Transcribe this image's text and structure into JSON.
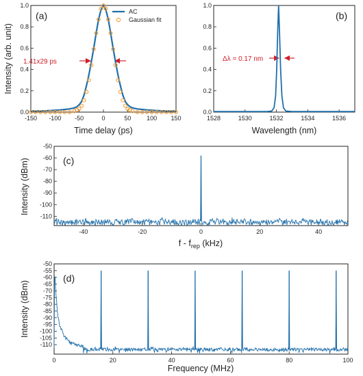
{
  "colors": {
    "trace": "#1f6faa",
    "fit": "#f39c33",
    "annotation": "#d0202a",
    "axis": "#222222"
  },
  "chart_data": [
    {
      "id": "a",
      "type": "line",
      "panel_label": "(a)",
      "xlabel": "Time delay (ps)",
      "ylabel": "Intensity (arb. unit)",
      "xlim": [
        -150,
        150
      ],
      "ylim": [
        0,
        1.0
      ],
      "xticks": [
        "-150",
        "-100",
        "-50",
        "0",
        "50",
        "100",
        "150"
      ],
      "yticks": [
        "0.0",
        "0.2",
        "0.4",
        "0.6",
        "0.8",
        "1.0"
      ],
      "legend": {
        "position": "top-right",
        "entries": [
          "AC",
          "Gaussian fit"
        ]
      },
      "annotation": "1.41x29 ps",
      "series": [
        {
          "name": "AC",
          "style": "line",
          "x": [
            -150,
            -130,
            -110,
            -90,
            -80,
            -70,
            -60,
            -55,
            -50,
            -45,
            -40,
            -35,
            -30,
            -25,
            -20,
            -15,
            -10,
            -5,
            0,
            5,
            10,
            15,
            20,
            25,
            30,
            35,
            40,
            45,
            50,
            55,
            60,
            70,
            80,
            90,
            110,
            130,
            150
          ],
          "y": [
            0.01,
            0.01,
            0.015,
            0.02,
            0.025,
            0.03,
            0.04,
            0.05,
            0.07,
            0.1,
            0.16,
            0.25,
            0.35,
            0.47,
            0.6,
            0.74,
            0.87,
            0.96,
            1.0,
            0.96,
            0.87,
            0.74,
            0.6,
            0.47,
            0.35,
            0.25,
            0.16,
            0.1,
            0.07,
            0.05,
            0.04,
            0.03,
            0.025,
            0.02,
            0.015,
            0.01,
            0.01
          ]
        },
        {
          "name": "Gaussian fit",
          "style": "markers",
          "x": [
            -150,
            -140,
            -130,
            -120,
            -110,
            -100,
            -90,
            -80,
            -70,
            -60,
            -55,
            -50,
            -45,
            -40,
            -35,
            -30,
            -25,
            -20,
            -15,
            -10,
            -5,
            0,
            5,
            10,
            15,
            20,
            25,
            30,
            35,
            40,
            45,
            50,
            55,
            60,
            70,
            80,
            90,
            100,
            110,
            120,
            130,
            140,
            150
          ],
          "y": [
            0,
            0,
            0,
            0,
            0,
            0,
            0,
            0,
            0,
            0.01,
            0.02,
            0.03,
            0.06,
            0.11,
            0.19,
            0.3,
            0.44,
            0.59,
            0.74,
            0.87,
            0.97,
            1.0,
            0.97,
            0.87,
            0.74,
            0.59,
            0.44,
            0.3,
            0.19,
            0.11,
            0.06,
            0.03,
            0.02,
            0.01,
            0,
            0,
            0,
            0,
            0,
            0,
            0,
            0,
            0
          ]
        }
      ]
    },
    {
      "id": "b",
      "type": "line",
      "panel_label": "(b)",
      "xlabel": "Wavelength (nm)",
      "ylabel": "",
      "xlim": [
        1528,
        1537
      ],
      "ylim": [
        0,
        1.0
      ],
      "xticks": [
        "1528",
        "1530",
        "1532",
        "1534",
        "1536"
      ],
      "yticks": [
        "0.0",
        "0.2",
        "0.4",
        "0.6",
        "0.8",
        "1.0"
      ],
      "annotation": "Δλ = 0.17 nm",
      "series": [
        {
          "name": "",
          "style": "line",
          "x": [
            1528,
            1531.4,
            1531.7,
            1531.85,
            1531.95,
            1532.02,
            1532.08,
            1532.14,
            1532.2,
            1532.27,
            1532.35,
            1532.45,
            1532.6,
            1533,
            1537
          ],
          "y": [
            0.005,
            0.005,
            0.01,
            0.04,
            0.15,
            0.4,
            0.75,
            1.0,
            0.75,
            0.4,
            0.15,
            0.04,
            0.01,
            0.005,
            0.005
          ]
        }
      ]
    },
    {
      "id": "c",
      "type": "line",
      "panel_label": "(c)",
      "xlabel": "f - f_rep (kHz)",
      "xlabel_main": "f - f",
      "xlabel_sub": "rep",
      "xlabel_tail": " (kHz)",
      "ylabel": "Intensity (dBm)",
      "xlim": [
        -50,
        50
      ],
      "ylim": [
        -118,
        -50
      ],
      "xticks": [
        "-40",
        "-20",
        "0",
        "20",
        "40"
      ],
      "yticks": [
        "-50",
        "-60",
        "-70",
        "-80",
        "-90",
        "-100",
        "-110"
      ],
      "noise_floor": -114,
      "noise_spread": 5,
      "peaks": [
        {
          "x": 0,
          "y": -58
        }
      ]
    },
    {
      "id": "d",
      "type": "line",
      "panel_label": "(d)",
      "xlabel": "Frequency (MHz)",
      "ylabel": "Intensity (dBm)",
      "xlim": [
        0,
        100
      ],
      "ylim": [
        -117,
        -50
      ],
      "xticks": [
        "0",
        "20",
        "40",
        "60",
        "80",
        "100"
      ],
      "yticks": [
        "-50",
        "-55",
        "-60",
        "-65",
        "-70",
        "-75",
        "-80",
        "-85",
        "-90",
        "-95",
        "-100",
        "-105",
        "-110"
      ],
      "noise_floor": -113,
      "noise_spread": 2.5,
      "peaks": [
        {
          "x": 16,
          "y": -55
        },
        {
          "x": 32,
          "y": -55
        },
        {
          "x": 48,
          "y": -55
        },
        {
          "x": 64,
          "y": -55
        },
        {
          "x": 80,
          "y": -55
        },
        {
          "x": 96,
          "y": -55
        }
      ],
      "low_freq": [
        {
          "x": 0.1,
          "y": -62
        },
        {
          "x": 0.3,
          "y": -58
        },
        {
          "x": 0.6,
          "y": -70
        },
        {
          "x": 1.0,
          "y": -84
        },
        {
          "x": 2.0,
          "y": -97
        },
        {
          "x": 3.5,
          "y": -104
        },
        {
          "x": 6,
          "y": -109
        },
        {
          "x": 10,
          "y": -111
        }
      ]
    }
  ]
}
